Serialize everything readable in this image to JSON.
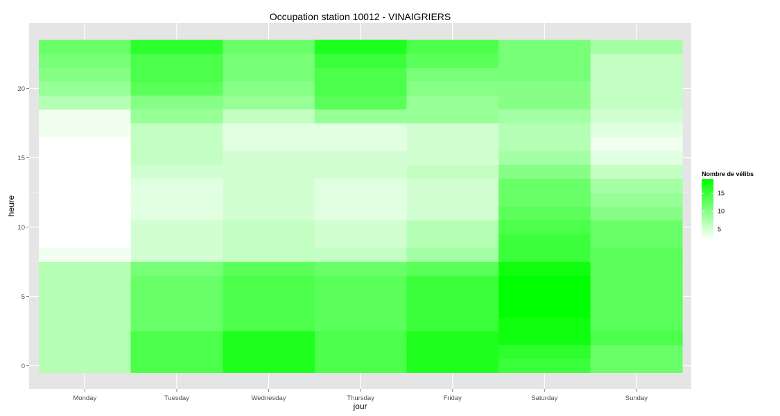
{
  "chart_data": {
    "type": "heatmap",
    "title": "Occupation station 10012 - VINAIGRIERS",
    "xlabel": "jour",
    "ylabel": "heure",
    "x_categories": [
      "Monday",
      "Tuesday",
      "Wednesday",
      "Thursday",
      "Friday",
      "Saturday",
      "Sunday"
    ],
    "y_values": [
      0,
      1,
      2,
      3,
      4,
      5,
      6,
      7,
      8,
      9,
      10,
      11,
      12,
      13,
      14,
      15,
      16,
      17,
      18,
      19,
      20,
      21,
      22,
      23
    ],
    "y_ticks": [
      0,
      5,
      10,
      15,
      20
    ],
    "ylim": [
      -0.5,
      23.5
    ],
    "grid": true,
    "legend": {
      "title": "Nombre de vélibs",
      "position": "right",
      "ticks": [
        5,
        10,
        15
      ],
      "range": [
        2,
        19
      ],
      "low_color": "#ffffff",
      "high_color": "#00ff00"
    },
    "values_by_day": [
      [
        7,
        7,
        7,
        7,
        7,
        7,
        7,
        7,
        3,
        2,
        2,
        1,
        1,
        1,
        1,
        1,
        2,
        3,
        3,
        7,
        9,
        10,
        11,
        12
      ],
      [
        14,
        14,
        14,
        12,
        12,
        12,
        12,
        11,
        5,
        5,
        5,
        4,
        4,
        4,
        5,
        6,
        6,
        6,
        9,
        10,
        13,
        14,
        14,
        16
      ],
      [
        17,
        17,
        17,
        14,
        14,
        14,
        14,
        13,
        6,
        6,
        6,
        5,
        5,
        5,
        5,
        5,
        4,
        4,
        6,
        9,
        10,
        11,
        11,
        12
      ],
      [
        14,
        14,
        14,
        13,
        13,
        13,
        13,
        12,
        6,
        5,
        5,
        4,
        4,
        4,
        5,
        5,
        4,
        4,
        9,
        13,
        14,
        14,
        15,
        17
      ],
      [
        17,
        17,
        17,
        15,
        15,
        15,
        15,
        13,
        8,
        7,
        7,
        5,
        5,
        5,
        6,
        5,
        5,
        5,
        9,
        9,
        10,
        11,
        13,
        14
      ],
      [
        15,
        16,
        18,
        18,
        19,
        19,
        19,
        18,
        15,
        15,
        14,
        13,
        12,
        12,
        10,
        8,
        7,
        7,
        8,
        10,
        10,
        11,
        11,
        11
      ],
      [
        12,
        12,
        14,
        13,
        13,
        13,
        13,
        13,
        13,
        12,
        12,
        10,
        9,
        8,
        6,
        4,
        3,
        4,
        5,
        6,
        6,
        6,
        6,
        8
      ]
    ]
  }
}
